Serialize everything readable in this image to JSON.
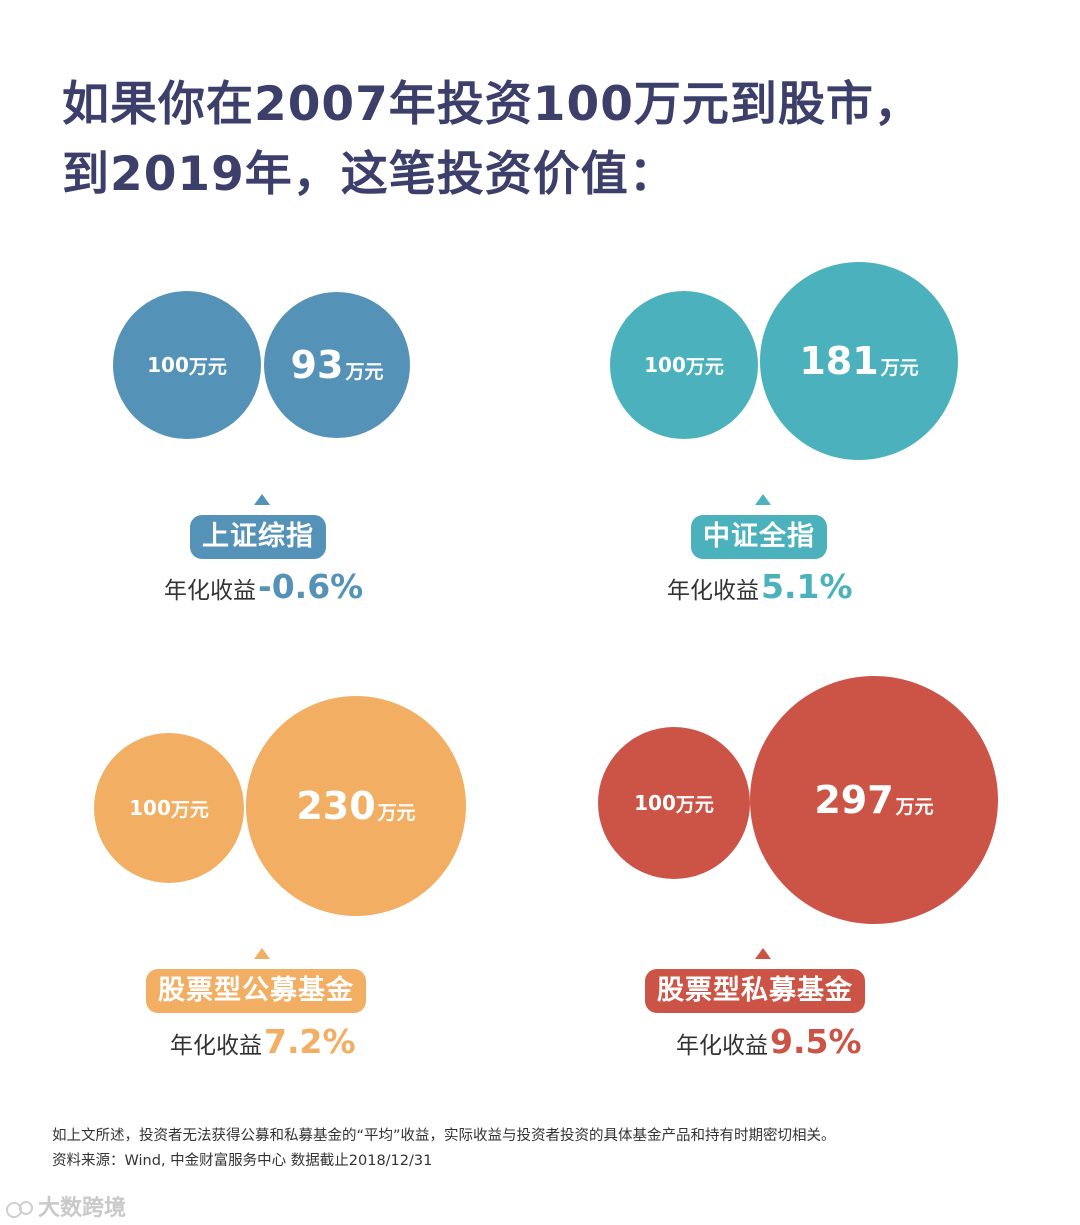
{
  "title": {
    "line1": "如果你在2007年投资100万元到股市，",
    "line2": "到2019年，这笔投资价值："
  },
  "chart_data": {
    "type": "bubble-comparison",
    "unit": "万元",
    "initial_investment": 100,
    "items": [
      {
        "name": "上证综指",
        "start_label": "100",
        "start_unit": "万元",
        "end_value": 93,
        "end_label": "93",
        "end_unit": "万元",
        "return_label": "年化收益",
        "return": "-0.6%",
        "color": "#5592b8"
      },
      {
        "name": "中证全指",
        "start_label": "100",
        "start_unit": "万元",
        "end_value": 181,
        "end_label": "181",
        "end_unit": "万元",
        "return_label": "年化收益",
        "return": "5.1%",
        "color": "#4bb1bc"
      },
      {
        "name": "股票型公募基金",
        "start_label": "100",
        "start_unit": "万元",
        "end_value": 230,
        "end_label": "230",
        "end_unit": "万元",
        "return_label": "年化收益",
        "return": "7.2%",
        "color": "#f2ae62"
      },
      {
        "name": "股票型私募基金",
        "start_label": "100",
        "start_unit": "万元",
        "end_value": 297,
        "end_label": "297",
        "end_unit": "万元",
        "return_label": "年化收益",
        "return": "9.5%",
        "color": "#cc5446"
      }
    ]
  },
  "footnote": {
    "line1": "如上文所述，投资者无法获得公募和私募基金的“平均”收益，实际收益与投资者投资的具体基金产品和持有时期密切相关。",
    "line2": "资料来源：Wind, 中金财富服务中心 数据截止2018/12/31"
  },
  "watermark": {
    "text": "大数跨境",
    "icon": "watermark-logo-icon"
  }
}
